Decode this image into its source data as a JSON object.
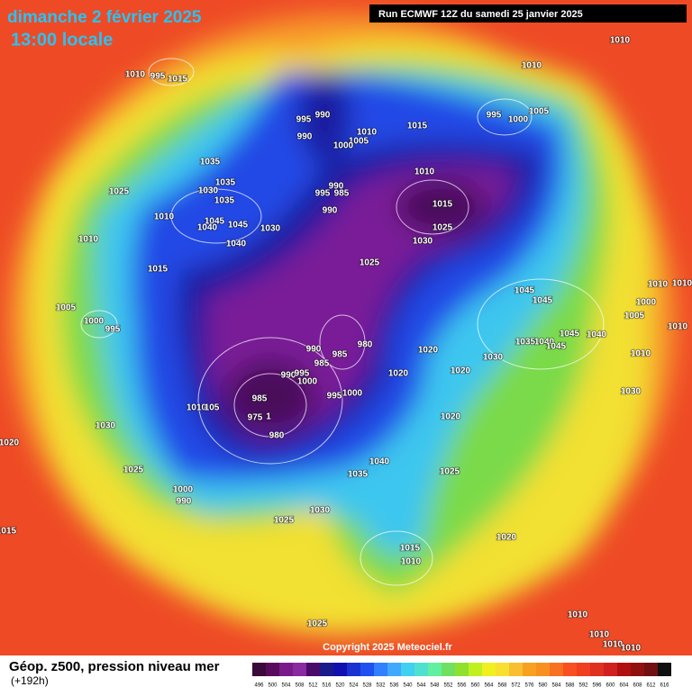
{
  "header": {
    "title": "dimanche 2 février 2025",
    "subtitle": "13:00 locale",
    "run": "Run ECMWF 12Z du samedi 25 janvier 2025"
  },
  "copyright": "Copyright 2025 Meteociel.fr",
  "footer": {
    "caption": "Géop. z500, pression niveau mer",
    "lead": "(+192h)"
  },
  "legend": {
    "labels": [
      "496",
      "500",
      "504",
      "508",
      "512",
      "516",
      "520",
      "524",
      "528",
      "532",
      "536",
      "540",
      "544",
      "548",
      "552",
      "556",
      "560",
      "564",
      "568",
      "572",
      "576",
      "580",
      "584",
      "588",
      "592",
      "596",
      "600",
      "604",
      "608",
      "612",
      "616"
    ],
    "colors": [
      "#3a0a3a",
      "#5a0a5a",
      "#7a1a8a",
      "#8a2aa0",
      "#4a0a6a",
      "#1a1a8a",
      "#1010b0",
      "#1a30d0",
      "#2050f0",
      "#3080ff",
      "#40a8ff",
      "#40d0f0",
      "#50e0d0",
      "#60f0a0",
      "#70e060",
      "#90e030",
      "#c0f020",
      "#f0f020",
      "#f8e030",
      "#f8c030",
      "#f8a020",
      "#f89020",
      "#f87020",
      "#f85020",
      "#f04020",
      "#e03020",
      "#d02020",
      "#b01010",
      "#901010",
      "#701010",
      "#101010"
    ]
  },
  "isobar_labels": [
    "1010",
    "1010",
    "1010",
    "995",
    "1015",
    "990",
    "995",
    "990",
    "1010",
    "1005",
    "1000",
    "1015",
    "995",
    "1000",
    "1005",
    "1035",
    "1035",
    "1030",
    "1035",
    "1025",
    "1010",
    "1045",
    "1040",
    "1045",
    "1040",
    "1030",
    "990",
    "995",
    "985",
    "990",
    "1010",
    "1015",
    "1025",
    "1030",
    "1010",
    "1015",
    "1025",
    "1045",
    "1045",
    "1010",
    "1010",
    "1000",
    "1005",
    "1010",
    "1005",
    "1000",
    "995",
    "980",
    "990",
    "985",
    "985",
    "1020",
    "1045",
    "1040",
    "1035",
    "1040",
    "1045",
    "1030",
    "1010",
    "1020",
    "1020",
    "990",
    "995",
    "1000",
    "995",
    "1000",
    "1030",
    "985",
    "1010",
    "105",
    "975",
    "1",
    "980",
    "1020",
    "1030",
    "1020",
    "1040",
    "1035",
    "1025",
    "1025",
    "1000",
    "990",
    "1030",
    "1025",
    "1015",
    "1020",
    "1015",
    "1010",
    "1010",
    "1025",
    "1010",
    "1010",
    "1010"
  ]
}
